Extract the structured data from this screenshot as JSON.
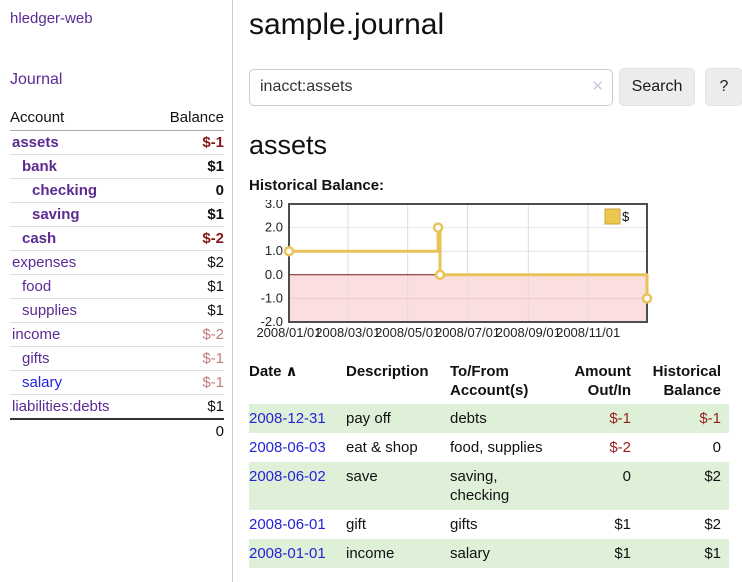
{
  "colors": {
    "accent_purple": "#5b2b92",
    "link_blue": "#2323d8",
    "negative_red": "#8c1616",
    "negative_soft_red": "#c17d7d",
    "table_negative_red": "#992020",
    "zebra_green": "#dff0d8",
    "chart_line_gold": "#e9c35a",
    "chart_negative_region_pink": "#fbdede",
    "chart_zero_line_red": "#7f1818"
  },
  "sidebar": {
    "brand": "hledger-web",
    "journal_link": "Journal",
    "header": {
      "account": "Account",
      "balance": "Balance"
    },
    "rows": [
      {
        "name": "assets",
        "balance": "$-1",
        "depth": 1,
        "bold": true
      },
      {
        "name": "bank",
        "balance": "$1",
        "depth": 2,
        "bold": true
      },
      {
        "name": "checking",
        "balance": "0",
        "depth": 3,
        "bold": true
      },
      {
        "name": "saving",
        "balance": "$1",
        "depth": 3,
        "bold": true
      },
      {
        "name": "cash",
        "balance": "$-2",
        "depth": 2,
        "bold": true
      },
      {
        "name": "expenses",
        "balance": "$2",
        "depth": 1,
        "bold": false
      },
      {
        "name": "food",
        "balance": "$1",
        "depth": 2,
        "bold": false
      },
      {
        "name": "supplies",
        "balance": "$1",
        "depth": 2,
        "bold": false
      },
      {
        "name": "income",
        "balance": "$-2",
        "depth": 1,
        "bold": false
      },
      {
        "name": "gifts",
        "balance": "$-1",
        "depth": 2,
        "bold": false
      },
      {
        "name": "salary",
        "balance": "$-1",
        "depth": 2,
        "bold": false,
        "unvisited": true
      },
      {
        "name": "liabilities:debts",
        "balance": "$1",
        "depth": 1,
        "bold": false
      }
    ],
    "total": "0"
  },
  "main": {
    "title": "sample.journal",
    "search": {
      "value": "inacct:assets",
      "clear_icon": "✕",
      "button_label": "Search",
      "help_label": "?"
    },
    "account_heading": "assets",
    "chart_heading": "Historical Balance:"
  },
  "chart_data": {
    "type": "line",
    "step": true,
    "title": "Historical Balance:",
    "legend": [
      {
        "name": "$",
        "color": "#e9c35a"
      }
    ],
    "legend_position": "top-right",
    "grid": true,
    "xlim": [
      "2008-01-01",
      "2008-12-31"
    ],
    "ylim": [
      -2,
      3
    ],
    "y_ticks": [
      "3.0",
      "2.0",
      "1.0",
      "0.0",
      "-1.0",
      "-2.0"
    ],
    "x_ticks": [
      {
        "date": "2008-01-01",
        "label": "2008/01/01"
      },
      {
        "date": "2008-03-01",
        "label": "2008/03/01"
      },
      {
        "date": "2008-05-01",
        "label": "2008/05/01"
      },
      {
        "date": "2008-07-01",
        "label": "2008/07/01"
      },
      {
        "date": "2008-09-01",
        "label": "2008/09/01"
      },
      {
        "date": "2008-11-01",
        "label": "2008/11/01"
      }
    ],
    "series": [
      {
        "name": "$",
        "points": [
          {
            "date": "2008-01-01",
            "value": 1
          },
          {
            "date": "2008-06-01",
            "value": 2
          },
          {
            "date": "2008-06-03",
            "value": 0
          },
          {
            "date": "2008-12-31",
            "value": -1
          }
        ]
      }
    ],
    "negative_region_shaded": true
  },
  "register": {
    "headers": [
      {
        "label": "Date",
        "sub": "",
        "align": "left",
        "sortable": true,
        "sort_icon": "∧"
      },
      {
        "label": "Description",
        "sub": "",
        "align": "left"
      },
      {
        "label": "To/From",
        "sub": "Account(s)",
        "align": "left"
      },
      {
        "label": "Amount",
        "sub": "Out/In",
        "align": "right"
      },
      {
        "label": "Historical",
        "sub": "Balance",
        "align": "right"
      }
    ],
    "rows": [
      {
        "date": "2008-12-31",
        "description": "pay off",
        "accounts": "debts",
        "amount": "$-1",
        "balance": "$-1"
      },
      {
        "date": "2008-06-03",
        "description": "eat & shop",
        "accounts": "food, supplies",
        "amount": "$-2",
        "balance": "0"
      },
      {
        "date": "2008-06-02",
        "description": "save",
        "accounts": "saving, checking",
        "amount": "0",
        "balance": "$2"
      },
      {
        "date": "2008-06-01",
        "description": "gift",
        "accounts": "gifts",
        "amount": "$1",
        "balance": "$2"
      },
      {
        "date": "2008-01-01",
        "description": "income",
        "accounts": "salary",
        "amount": "$1",
        "balance": "$1"
      }
    ]
  }
}
